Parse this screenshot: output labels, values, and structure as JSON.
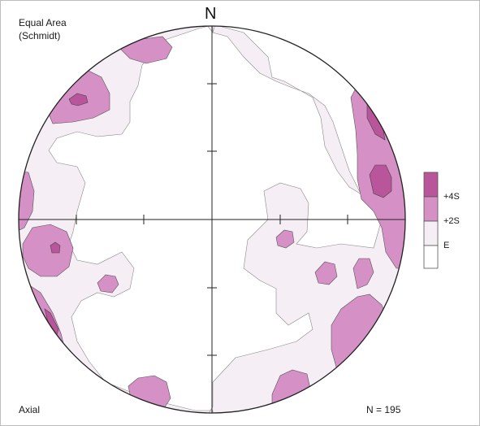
{
  "projection": {
    "line1": "Equal Area",
    "line2": "(Schmidt)"
  },
  "north_label": "N",
  "plot_mode": "Axial",
  "count_label": "N = 195",
  "legend": {
    "levels": [
      {
        "label": "+4S",
        "color": "#b9559a"
      },
      {
        "label": "+2S",
        "color": "#d590c6"
      },
      {
        "label": "E",
        "color": "#f6eef5"
      }
    ],
    "bottom_color": "#ffffff"
  },
  "colors": {
    "level_high": "#b9559a",
    "level_mid": "#d590c6",
    "level_low": "#f6eef5",
    "outline": "#222222"
  }
}
